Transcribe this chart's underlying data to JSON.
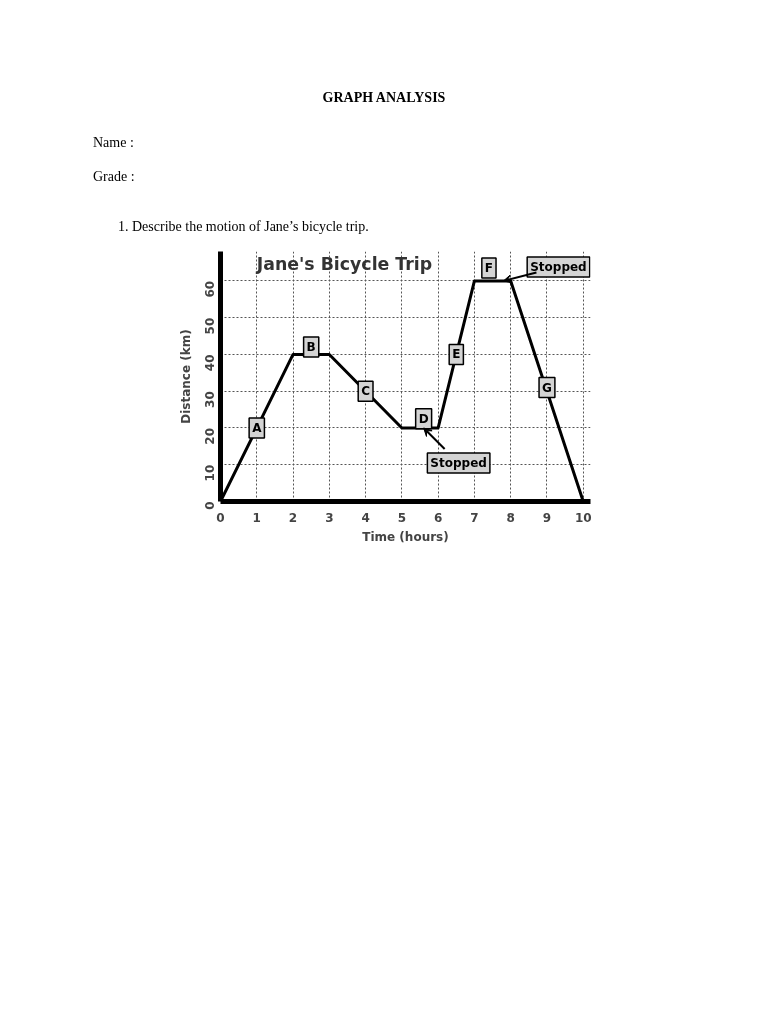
{
  "chart_data": {
    "type": "line",
    "title": "Jane's Bicycle Trip",
    "xlabel": "Time (hours)",
    "ylabel": "Distance (km)",
    "x": [
      0,
      2,
      3,
      5,
      6,
      7,
      8,
      10
    ],
    "series": [
      {
        "color": "#000000",
        "values": [
          0,
          40,
          40,
          20,
          20,
          60,
          60,
          0
        ]
      }
    ],
    "xlim": [
      0,
      10.2
    ],
    "ylim": [
      0,
      68
    ],
    "xticks": [
      0,
      1,
      2,
      3,
      4,
      5,
      6,
      7,
      8,
      9,
      10
    ],
    "yticks": [
      0,
      10,
      20,
      30,
      40,
      50,
      60
    ],
    "grid": true,
    "marker": "none",
    "line_style": "solid",
    "annotations": [
      "GRAPH ANALYSIS",
      "Name  :",
      "Grade  :",
      "1.   Describe the motion of Jane’s bicycle trip.",
      {
        "text": "A",
        "x": 1,
        "y": 20
      },
      {
        "text": "B",
        "x": 2.5,
        "y": 42
      },
      {
        "text": "C",
        "x": 4,
        "y": 30
      },
      {
        "text": "D",
        "x": 5.6,
        "y": 22.5
      },
      {
        "text": "E",
        "x": 6.5,
        "y": 40
      },
      {
        "text": "F",
        "x": 7.4,
        "y": 63.5
      },
      {
        "text": "G",
        "x": 9,
        "y": 31
      },
      {
        "text": "Stopped",
        "x": 5.6,
        "y": 20
      },
      {
        "text": "Stopped",
        "x": 7.8,
        "y": 60
      }
    ]
  }
}
